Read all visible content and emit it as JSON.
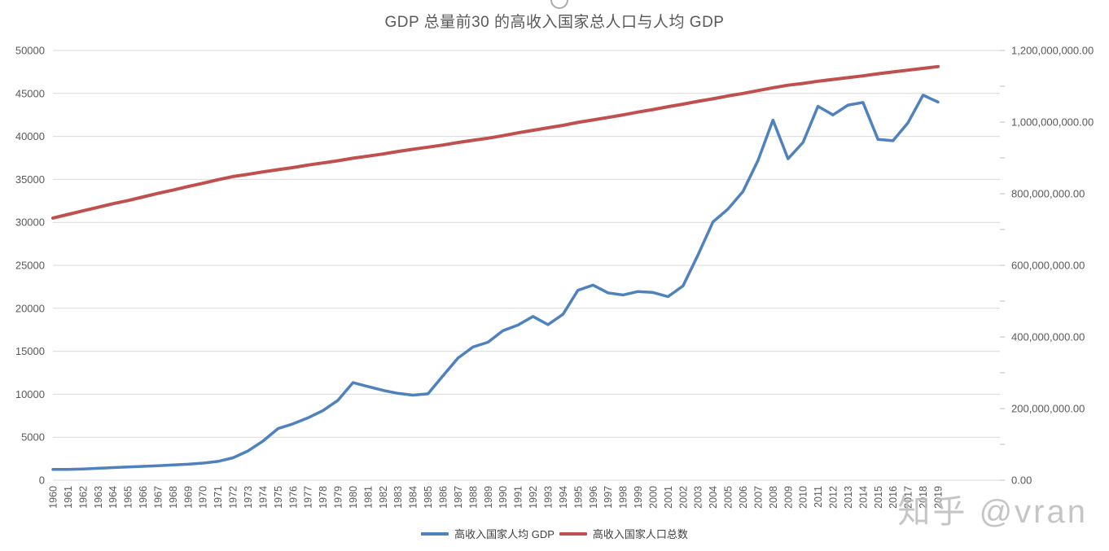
{
  "title": "GDP 总量前30 的高收入国家总人口与人均 GDP",
  "watermark": "知乎 @vran",
  "colors": {
    "gdp_line": "#4F81BD",
    "population_line": "#C0504D",
    "gridline": "#D9D9D9",
    "axis_text": "#595959",
    "title_text": "#595959"
  },
  "legend": [
    {
      "label": "高收入国家人均 GDP",
      "color": "#4F81BD"
    },
    {
      "label": "高收入国家人口总数",
      "color": "#C0504D"
    }
  ],
  "chart_data": {
    "type": "line",
    "title": "GDP 总量前30 的高收入国家总人口与人均 GDP",
    "xlabel": "",
    "ylabel_left": "",
    "ylabel_right": "",
    "grid": true,
    "legend_position": "bottom",
    "x": [
      1960,
      1961,
      1962,
      1963,
      1964,
      1965,
      1966,
      1967,
      1968,
      1969,
      1970,
      1971,
      1972,
      1973,
      1974,
      1975,
      1976,
      1977,
      1978,
      1979,
      1980,
      1981,
      1982,
      1983,
      1984,
      1985,
      1986,
      1987,
      1988,
      1989,
      1990,
      1991,
      1992,
      1993,
      1994,
      1995,
      1996,
      1997,
      1998,
      1999,
      2000,
      2001,
      2002,
      2003,
      2004,
      2005,
      2006,
      2007,
      2008,
      2009,
      2010,
      2011,
      2012,
      2013,
      2014,
      2015,
      2016,
      2017,
      2018,
      2019
    ],
    "left_axis": {
      "min": 0,
      "max": 50000,
      "step": 5000,
      "tick_labels": [
        "0",
        "5000",
        "10000",
        "15000",
        "20000",
        "25000",
        "30000",
        "35000",
        "40000",
        "45000",
        "50000"
      ]
    },
    "right_axis": {
      "min": 0,
      "max": 1200000000,
      "label_step": 200000000,
      "tick_step": 100000000,
      "tick_labels": [
        "0.00",
        "200,000,000.00",
        "400,000,000.00",
        "600,000,000.00",
        "800,000,000.00",
        "1,000,000,000.00",
        "1,200,000,000.00"
      ]
    },
    "series": [
      {
        "name": "高收入国家人均 GDP",
        "axis": "left",
        "color": "#4F81BD",
        "values": [
          1250,
          1250,
          1310,
          1380,
          1470,
          1540,
          1610,
          1690,
          1770,
          1860,
          1990,
          2190,
          2600,
          3400,
          4550,
          6000,
          6550,
          7250,
          8100,
          9300,
          11350,
          10900,
          10450,
          10100,
          9900,
          10050,
          12150,
          14200,
          15500,
          16050,
          17400,
          18050,
          19050,
          18100,
          19300,
          22100,
          22700,
          21800,
          21550,
          21950,
          21850,
          21350,
          22600,
          26200,
          30050,
          31550,
          33600,
          37200,
          41900,
          37400,
          39300,
          43500,
          42500,
          43650,
          43950,
          39650,
          39500,
          41600,
          44800,
          44000
        ]
      },
      {
        "name": "高收入国家人口总数",
        "axis": "right",
        "color": "#C0504D",
        "values": [
          732000000,
          742000000,
          752000000,
          762000000,
          772000000,
          781000000,
          791000000,
          801000000,
          810000000,
          820000000,
          829000000,
          839000000,
          848000000,
          854000000,
          861000000,
          867000000,
          873000000,
          880000000,
          886000000,
          892000000,
          899000000,
          905000000,
          911000000,
          918000000,
          924000000,
          930000000,
          936000000,
          943000000,
          949000000,
          955000000,
          962000000,
          970000000,
          977000000,
          984000000,
          991000000,
          999000000,
          1006000000,
          1013000000,
          1020000000,
          1028000000,
          1035000000,
          1043000000,
          1050000000,
          1058000000,
          1065000000,
          1073000000,
          1080000000,
          1088000000,
          1096000000,
          1103000000,
          1108000000,
          1114000000,
          1119000000,
          1124000000,
          1129000000,
          1135000000,
          1140000000,
          1145000000,
          1150000000,
          1155000000
        ]
      }
    ]
  }
}
